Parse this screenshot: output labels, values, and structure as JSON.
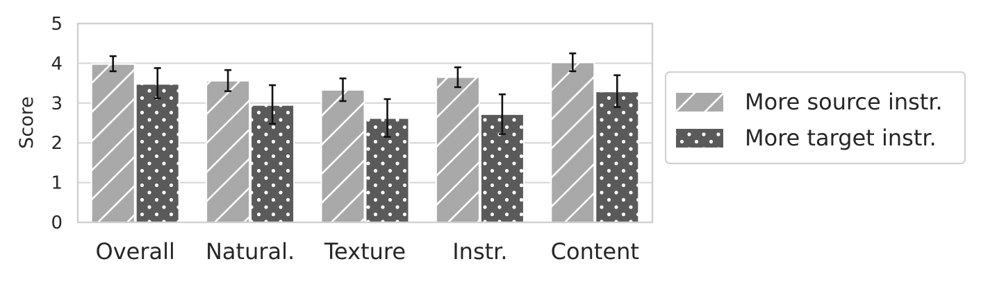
{
  "chart_data": {
    "type": "bar",
    "title": "",
    "xlabel": "",
    "ylabel": "Score",
    "ylim": [
      0,
      5
    ],
    "yticks": [
      0,
      1,
      2,
      3,
      4,
      5
    ],
    "grid": true,
    "legend_position": "right",
    "categories": [
      "Overall",
      "Natural.",
      "Texture",
      "Instr.",
      "Content"
    ],
    "series": [
      {
        "name": "More source instr.",
        "color": "#a9a9a9",
        "pattern": "diagonal-hatch",
        "values": [
          3.98,
          3.56,
          3.33,
          3.65,
          4.02
        ],
        "error_low": [
          3.8,
          3.3,
          3.05,
          3.4,
          3.8
        ],
        "error_high": [
          4.18,
          3.83,
          3.62,
          3.9,
          4.25
        ]
      },
      {
        "name": "More target instr.",
        "color": "#5a5a5a",
        "pattern": "dots",
        "values": [
          3.48,
          2.95,
          2.62,
          2.72,
          3.29
        ],
        "error_low": [
          3.12,
          2.48,
          2.15,
          2.22,
          2.9
        ],
        "error_high": [
          3.88,
          3.45,
          3.1,
          3.22,
          3.7
        ]
      }
    ]
  }
}
